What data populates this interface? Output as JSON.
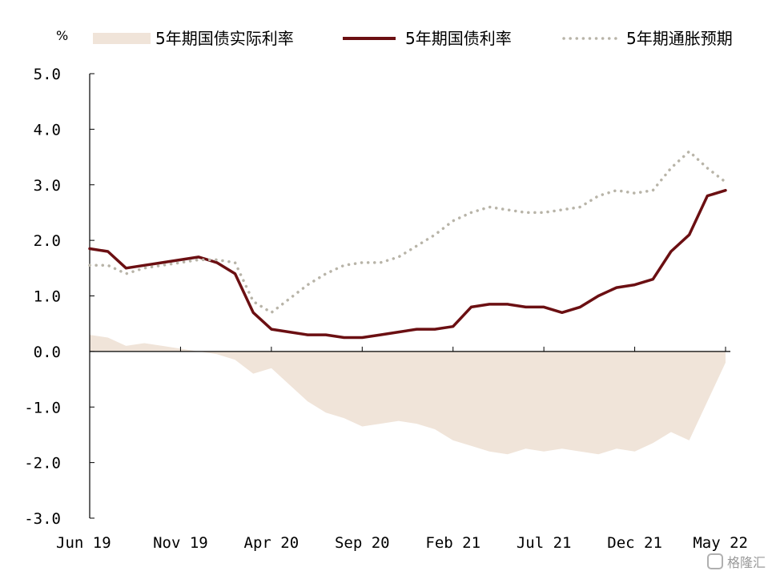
{
  "chart_data": {
    "type": "line",
    "unit": "%",
    "ylim": [
      -3,
      5
    ],
    "y_ticks": [
      "5.0",
      "4.0",
      "3.0",
      "2.0",
      "1.0",
      "0.0",
      "-1.0",
      "-2.0",
      "-3.0"
    ],
    "y_tick_values": [
      5,
      4,
      3,
      2,
      1,
      0,
      -1,
      -2,
      -3
    ],
    "x_start": "2019-06",
    "x_end": "2022-05",
    "x_tick_labels": [
      "Jun 19",
      "Nov 19",
      "Apr 20",
      "Sep 20",
      "Feb 21",
      "Jul 21",
      "Dec 21",
      "May 22"
    ],
    "x_tick_dates": [
      "2019-06",
      "2019-11",
      "2020-04",
      "2020-09",
      "2021-02",
      "2021-07",
      "2021-12",
      "2022-05"
    ],
    "legend_position": "top",
    "grid": false,
    "series": [
      {
        "name": "5年期国债实际利率",
        "style": "area",
        "color": "#f0e4d9",
        "x": [
          "2019-06",
          "2019-07",
          "2019-08",
          "2019-09",
          "2019-10",
          "2019-11",
          "2019-12",
          "2020-01",
          "2020-02",
          "2020-03",
          "2020-04",
          "2020-05",
          "2020-06",
          "2020-07",
          "2020-08",
          "2020-09",
          "2020-10",
          "2020-11",
          "2020-12",
          "2021-01",
          "2021-02",
          "2021-03",
          "2021-04",
          "2021-05",
          "2021-06",
          "2021-07",
          "2021-08",
          "2021-09",
          "2021-10",
          "2021-11",
          "2021-12",
          "2022-01",
          "2022-02",
          "2022-03",
          "2022-04",
          "2022-05"
        ],
        "values": [
          0.3,
          0.25,
          0.1,
          0.15,
          0.1,
          0.05,
          0.0,
          -0.05,
          -0.15,
          -0.4,
          -0.3,
          -0.6,
          -0.9,
          -1.1,
          -1.2,
          -1.35,
          -1.3,
          -1.25,
          -1.3,
          -1.4,
          -1.6,
          -1.7,
          -1.8,
          -1.85,
          -1.75,
          -1.8,
          -1.75,
          -1.8,
          -1.85,
          -1.75,
          -1.8,
          -1.65,
          -1.45,
          -1.6,
          -0.9,
          -0.2
        ]
      },
      {
        "name": "5年期国债利率",
        "style": "solid",
        "color": "#6b0f12",
        "x": [
          "2019-06",
          "2019-07",
          "2019-08",
          "2019-09",
          "2019-10",
          "2019-11",
          "2019-12",
          "2020-01",
          "2020-02",
          "2020-03",
          "2020-04",
          "2020-05",
          "2020-06",
          "2020-07",
          "2020-08",
          "2020-09",
          "2020-10",
          "2020-11",
          "2020-12",
          "2021-01",
          "2021-02",
          "2021-03",
          "2021-04",
          "2021-05",
          "2021-06",
          "2021-07",
          "2021-08",
          "2021-09",
          "2021-10",
          "2021-11",
          "2021-12",
          "2022-01",
          "2022-02",
          "2022-03",
          "2022-04",
          "2022-05"
        ],
        "values": [
          1.85,
          1.8,
          1.5,
          1.55,
          1.6,
          1.65,
          1.7,
          1.6,
          1.4,
          0.7,
          0.4,
          0.35,
          0.3,
          0.3,
          0.25,
          0.25,
          0.3,
          0.35,
          0.4,
          0.4,
          0.45,
          0.8,
          0.85,
          0.85,
          0.8,
          0.8,
          0.7,
          0.8,
          1.0,
          1.15,
          1.2,
          1.3,
          1.8,
          2.1,
          2.8,
          2.9
        ]
      },
      {
        "name": "5年期通胀预期",
        "style": "dotted",
        "color": "#b8b4a8",
        "x": [
          "2019-06",
          "2019-07",
          "2019-08",
          "2019-09",
          "2019-10",
          "2019-11",
          "2019-12",
          "2020-01",
          "2020-02",
          "2020-03",
          "2020-04",
          "2020-05",
          "2020-06",
          "2020-07",
          "2020-08",
          "2020-09",
          "2020-10",
          "2020-11",
          "2020-12",
          "2021-01",
          "2021-02",
          "2021-03",
          "2021-04",
          "2021-05",
          "2021-06",
          "2021-07",
          "2021-08",
          "2021-09",
          "2021-10",
          "2021-11",
          "2021-12",
          "2022-01",
          "2022-02",
          "2022-03",
          "2022-04",
          "2022-05"
        ],
        "values": [
          1.55,
          1.55,
          1.4,
          1.5,
          1.55,
          1.6,
          1.65,
          1.65,
          1.6,
          0.9,
          0.7,
          0.95,
          1.2,
          1.4,
          1.55,
          1.6,
          1.6,
          1.7,
          1.9,
          2.1,
          2.35,
          2.5,
          2.6,
          2.55,
          2.5,
          2.5,
          2.55,
          2.6,
          2.8,
          2.9,
          2.85,
          2.9,
          3.3,
          3.6,
          3.3,
          3.05
        ]
      }
    ]
  },
  "watermark": "格隆汇"
}
